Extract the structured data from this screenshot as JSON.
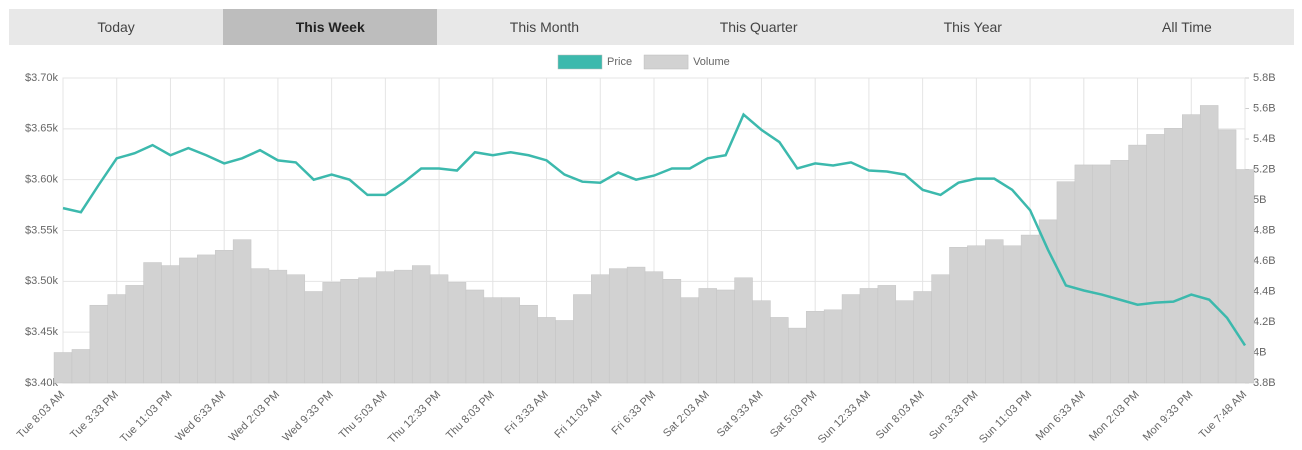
{
  "tabs": [
    "Today",
    "This Week",
    "This Month",
    "This Quarter",
    "This Year",
    "All Time"
  ],
  "active_tab": 1,
  "chart_data": {
    "type": "line",
    "categories": [
      "Tue 8:03 AM",
      null,
      null,
      "Tue 3:33 PM",
      null,
      null,
      "Tue 11:03 PM",
      null,
      null,
      "Wed 6:33 AM",
      null,
      null,
      "Wed 2:03 PM",
      null,
      null,
      "Wed 9:33 PM",
      null,
      null,
      "Thu 5:03 AM",
      null,
      null,
      "Thu 12:33 PM",
      null,
      null,
      "Thu 8:03 PM",
      null,
      null,
      "Fri 3:33 AM",
      null,
      null,
      "Fri 11:03 AM",
      null,
      null,
      "Fri 6:33 PM",
      null,
      null,
      "Sat 2:03 AM",
      null,
      null,
      "Sat 9:33 AM",
      null,
      null,
      "Sat 5:03 PM",
      null,
      null,
      "Sun 12:33 AM",
      null,
      null,
      "Sun 8:03 AM",
      null,
      null,
      "Sun 3:33 PM",
      null,
      null,
      "Sun 11:03 PM",
      null,
      null,
      "Mon 6:33 AM",
      null,
      null,
      "Mon 2:03 PM",
      null,
      null,
      "Mon 9:33 PM",
      null,
      null,
      "Tue 7:48 AM"
    ],
    "series": [
      {
        "name": "Price",
        "color": "#3cb9ad",
        "values": [
          3572,
          3568,
          3595,
          3621,
          3626,
          3634,
          3624,
          3631,
          3624,
          3616,
          3621,
          3629,
          3619,
          3617,
          3600,
          3605,
          3600,
          3585,
          3585,
          3597,
          3611,
          3611,
          3609,
          3627,
          3624,
          3627,
          3624,
          3619,
          3605,
          3598,
          3597,
          3607,
          3600,
          3604,
          3611,
          3611,
          3621,
          3624,
          3664,
          3649,
          3637,
          3611,
          3616,
          3614,
          3617,
          3609,
          3608,
          3605,
          3590,
          3585,
          3597,
          3601,
          3601,
          3590,
          3570,
          3531,
          3496,
          3491,
          3487,
          3482,
          3477,
          3479,
          3480,
          3487,
          3482,
          3464,
          3437
        ]
      },
      {
        "name": "Volume",
        "color": "#d2d2d2",
        "type": "bar",
        "axis": "y2",
        "values": [
          4.0,
          4.02,
          4.31,
          4.38,
          4.44,
          4.59,
          4.57,
          4.62,
          4.64,
          4.67,
          4.74,
          4.55,
          4.54,
          4.51,
          4.4,
          4.46,
          4.48,
          4.49,
          4.53,
          4.54,
          4.57,
          4.51,
          4.46,
          4.41,
          4.36,
          4.36,
          4.31,
          4.23,
          4.21,
          4.38,
          4.51,
          4.55,
          4.56,
          4.53,
          4.48,
          4.36,
          4.42,
          4.41,
          4.49,
          4.34,
          4.23,
          4.16,
          4.27,
          4.28,
          4.38,
          4.42,
          4.44,
          4.34,
          4.4,
          4.51,
          4.69,
          4.7,
          4.74,
          4.7,
          4.77,
          4.87,
          5.12,
          5.23,
          5.23,
          5.26,
          5.36,
          5.43,
          5.47,
          5.56,
          5.62,
          5.46,
          5.2
        ]
      }
    ],
    "ylim": [
      3400,
      3700
    ],
    "yticks": [
      {
        "value": 3400,
        "label": "$3.40k"
      },
      {
        "value": 3450,
        "label": "$3.45k"
      },
      {
        "value": 3500,
        "label": "$3.50k"
      },
      {
        "value": 3550,
        "label": "$3.55k"
      },
      {
        "value": 3600,
        "label": "$3.60k"
      },
      {
        "value": 3650,
        "label": "$3.65k"
      },
      {
        "value": 3700,
        "label": "$3.70k"
      }
    ],
    "y2lim": [
      3.8,
      5.8
    ],
    "y2ticks": [
      {
        "value": 3.8,
        "label": "3.8B"
      },
      {
        "value": 4,
        "label": "4B"
      },
      {
        "value": 4.2,
        "label": "4.2B"
      },
      {
        "value": 4.4,
        "label": "4.4B"
      },
      {
        "value": 4.6,
        "label": "4.6B"
      },
      {
        "value": 4.8,
        "label": "4.8B"
      },
      {
        "value": 5,
        "label": "5B"
      },
      {
        "value": 5.2,
        "label": "5.2B"
      },
      {
        "value": 5.4,
        "label": "5.4B"
      },
      {
        "value": 5.6,
        "label": "5.6B"
      },
      {
        "value": 5.8,
        "label": "5.8B"
      }
    ],
    "grid": true,
    "legend": "top"
  }
}
